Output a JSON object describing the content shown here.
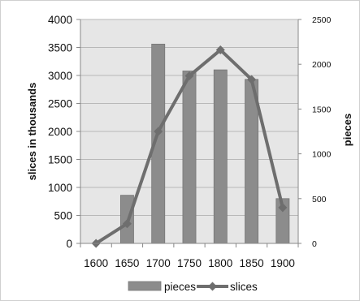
{
  "chart_data": {
    "type": "bar",
    "combo": "bar-line-dual-axis",
    "title": "",
    "xlabel": "",
    "ylabel": "slices in thousands",
    "y2label": "pieces",
    "x": [
      "1600",
      "1650",
      "1700",
      "1750",
      "1800",
      "1850",
      "1900"
    ],
    "ylim": [
      0,
      4000
    ],
    "y2lim": [
      0,
      2500
    ],
    "y_ticks": [
      "0",
      "500",
      "1000",
      "1500",
      "2000",
      "2500",
      "3000",
      "3500",
      "4000"
    ],
    "y2_ticks": [
      "0",
      "500",
      "1000",
      "1500",
      "2000",
      "2500"
    ],
    "grid": true,
    "legend_position": "bottom",
    "series": [
      {
        "name": "pieces",
        "type": "bar",
        "axis": "left",
        "color": "#8c8c8c",
        "values": [
          null,
          860,
          3560,
          3080,
          3100,
          2930,
          800
        ]
      },
      {
        "name": "slices",
        "type": "line",
        "axis": "right",
        "color": "#6e6e6e",
        "marker": "diamond",
        "values": [
          0,
          220,
          1250,
          1870,
          2160,
          1830,
          400
        ]
      }
    ],
    "legend": [
      "pieces",
      "slices"
    ]
  }
}
